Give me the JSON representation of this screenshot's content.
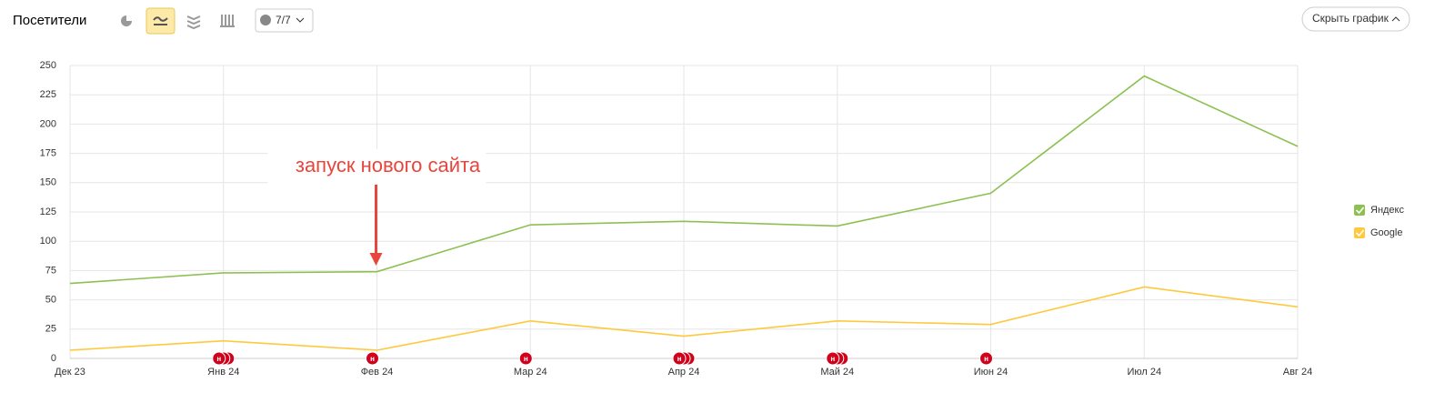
{
  "toolbar": {
    "title": "Посетители",
    "filter_button": "7/7",
    "hide_button": "Скрыть график"
  },
  "chart_data": {
    "type": "line",
    "categories": [
      "Дек 23",
      "Янв 24",
      "Фев 24",
      "Мар 24",
      "Апр 24",
      "Май 24",
      "Июн 24",
      "Июл 24",
      "Авг 24"
    ],
    "series": [
      {
        "name": "Яндекс",
        "color": "#8cc152",
        "values": [
          64,
          73,
          74,
          114,
          117,
          113,
          141,
          241,
          181
        ]
      },
      {
        "name": "Google",
        "color": "#ffc83d",
        "values": [
          7,
          15,
          7,
          32,
          19,
          32,
          29,
          61,
          44
        ]
      }
    ],
    "ylim": [
      0,
      250
    ],
    "yticks": [
      0,
      25,
      50,
      75,
      100,
      125,
      150,
      175,
      200,
      225,
      250
    ],
    "grid": true,
    "legend": "right",
    "annotation": {
      "text": "запуск нового сайта",
      "category": "Фев 24"
    },
    "event_markers": [
      {
        "category": "Янв 24",
        "label": "н"
      },
      {
        "category": "Янв 24",
        "label": "н"
      },
      {
        "category": "Янв 24",
        "label": "н"
      },
      {
        "category": "Фев 24",
        "label": "н"
      },
      {
        "category": "Мар 24",
        "label": "н"
      },
      {
        "category": "Апр 24",
        "label": "н"
      },
      {
        "category": "Апр 24",
        "label": "н"
      },
      {
        "category": "Апр 24",
        "label": "н"
      },
      {
        "category": "Май 24",
        "label": "н"
      },
      {
        "category": "Май 24",
        "label": "н"
      },
      {
        "category": "Май 24",
        "label": "н"
      },
      {
        "category": "Июн 24",
        "label": "н"
      }
    ]
  }
}
